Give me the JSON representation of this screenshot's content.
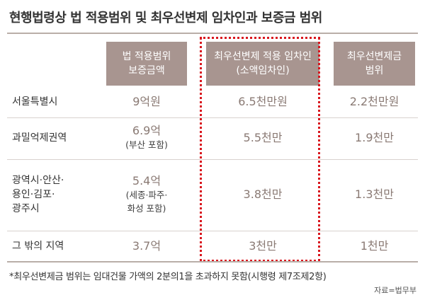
{
  "title": "현행법령상 법 적용범위 및 최우선변제 임차인과 보증금 범위",
  "headers": [
    {
      "line1": "법 적용범위",
      "line2": "보증금액"
    },
    {
      "line1": "최우선변제 적용 임차인",
      "line2": "(소액임차인)"
    },
    {
      "line1": "최우선변제금",
      "line2": "범위"
    }
  ],
  "rows": [
    {
      "region": [
        "서울특별시"
      ],
      "scope": "9억원",
      "scope_note": [],
      "tenant": "6.5천만원",
      "amount": "2.2천만원"
    },
    {
      "region": [
        "과밀억제권역"
      ],
      "scope": "6.9억",
      "scope_note": [
        "(부산 포함)"
      ],
      "tenant": "5.5천만",
      "amount": "1.9천만"
    },
    {
      "region": [
        "광역시·안산·",
        "용인·김포·",
        "광주시"
      ],
      "scope": "5.4억",
      "scope_note": [
        "(세종·파주·",
        "화성 포함)"
      ],
      "tenant": "3.8천만",
      "amount": "1.3천만"
    },
    {
      "region": [
        "그 밖의 지역"
      ],
      "scope": "3.7억",
      "scope_note": [],
      "tenant": "3천만",
      "amount": "1천만"
    }
  ],
  "footnote": "*최우선변제금 범위는 임대건물 가액의 2분의1을 초과하지 못함(시행령 제7조제2항)",
  "source": "자료=법무부",
  "colors": {
    "header_bg": "#a89590",
    "value_text": "#8a7a74",
    "highlight": "#d9161e"
  }
}
